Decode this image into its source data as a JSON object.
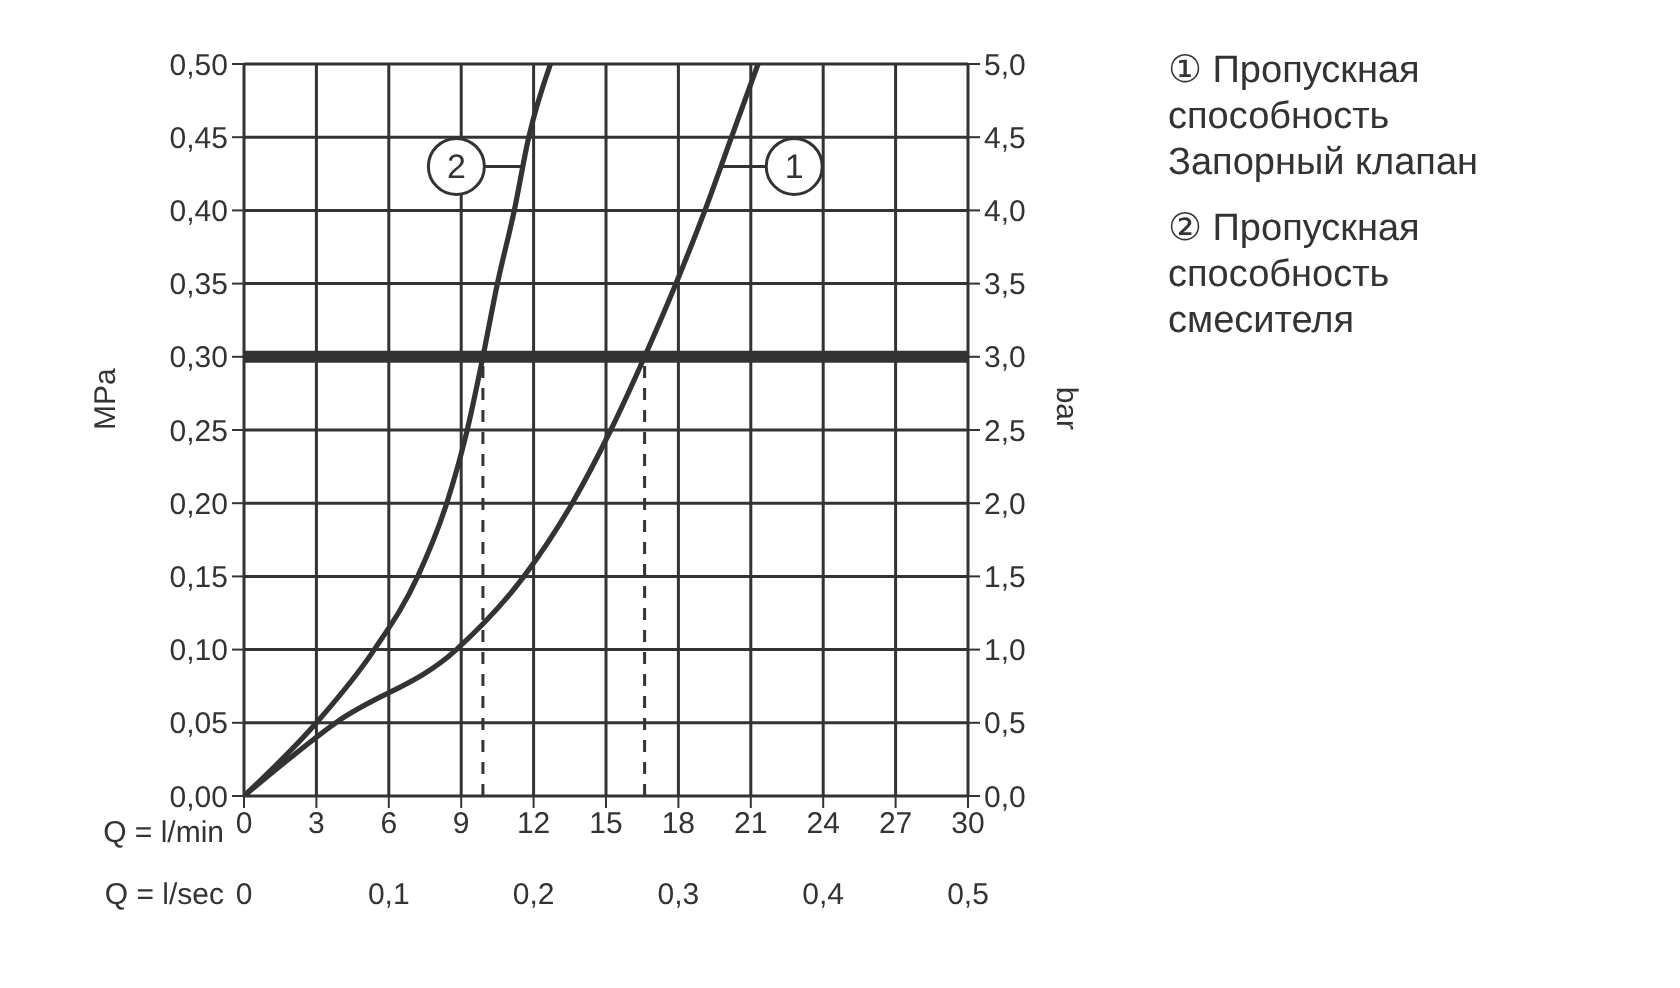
{
  "chart_data": {
    "type": "line",
    "xlabel": "Q = l/min",
    "ylabel": "MPa",
    "y2label": "bar",
    "x2label": "Q = l/sec",
    "xlim": [
      0,
      30
    ],
    "xticks": [
      0,
      3,
      6,
      9,
      12,
      15,
      18,
      21,
      24,
      27,
      30
    ],
    "x2lim": [
      0,
      0.5
    ],
    "x2ticks": [
      0,
      {
        "value": 0.1,
        "label": "0,1"
      },
      {
        "value": 0.2,
        "label": "0,2"
      },
      {
        "value": 0.3,
        "label": "0,3"
      },
      {
        "value": 0.4,
        "label": "0,4"
      },
      {
        "value": 0.5,
        "label": "0,5"
      }
    ],
    "ylim": [
      0,
      0.5
    ],
    "yticks": [
      {
        "value": 0,
        "label": "0,00"
      },
      {
        "value": 0.05,
        "label": "0,05"
      },
      {
        "value": 0.1,
        "label": "0,10"
      },
      {
        "value": 0.15,
        "label": "0,15"
      },
      {
        "value": 0.2,
        "label": "0,20"
      },
      {
        "value": 0.25,
        "label": "0,25"
      },
      {
        "value": 0.3,
        "label": "0,30"
      },
      {
        "value": 0.35,
        "label": "0,35"
      },
      {
        "value": 0.4,
        "label": "0,40"
      },
      {
        "value": 0.45,
        "label": "0,45"
      },
      {
        "value": 0.5,
        "label": "0,50"
      }
    ],
    "y2lim": [
      0,
      5
    ],
    "y2ticks": [
      {
        "value": 0,
        "label": "0,0"
      },
      {
        "value": 0.5,
        "label": "0,5"
      },
      {
        "value": 1,
        "label": "1,0"
      },
      {
        "value": 1.5,
        "label": "1,5"
      },
      {
        "value": 2,
        "label": "2,0"
      },
      {
        "value": 2.5,
        "label": "2,5"
      },
      {
        "value": 3,
        "label": "3,0"
      },
      {
        "value": 3.5,
        "label": "3,5"
      },
      {
        "value": 4,
        "label": "4,0"
      },
      {
        "value": 4.5,
        "label": "4,5"
      },
      {
        "value": 5,
        "label": "5,0"
      }
    ],
    "grid": true,
    "legend": "right",
    "marker": "none",
    "line_style": "solid",
    "series": [
      {
        "name": "① Пропускная способность Запорный клапан",
        "color": "#333333",
        "x": [
          0,
          3.8,
          8.8,
          11.6,
          13.6,
          15.2,
          16.6,
          17.9,
          19.1,
          20.2,
          21.3
        ],
        "values": [
          0,
          0.05,
          0.1,
          0.15,
          0.2,
          0.25,
          0.3,
          0.35,
          0.4,
          0.45,
          0.5
        ]
      },
      {
        "name": "② Пропускная способность смесителя",
        "color": "#333333",
        "x": [
          0,
          3.0,
          5.4,
          7.2,
          8.4,
          9.25,
          9.9,
          10.5,
          11.2,
          11.8,
          12.7
        ],
        "values": [
          0,
          0.05,
          0.1,
          0.15,
          0.2,
          0.25,
          0.3,
          0.35,
          0.4,
          0.45,
          0.5
        ]
      }
    ],
    "ref_lines": [
      {
        "axis": "y",
        "value": 0.3,
        "color": "#333333"
      },
      {
        "axis": "x",
        "value": 9.9,
        "color": "#333333",
        "line_style": "dashed"
      },
      {
        "axis": "x",
        "value": 16.6,
        "color": "#333333",
        "line_style": "dashed"
      }
    ],
    "annotations": [
      {
        "text": "2",
        "x": 8.8,
        "y": 0.43
      },
      {
        "text": "1",
        "x": 22.8,
        "y": 0.43
      }
    ]
  }
}
